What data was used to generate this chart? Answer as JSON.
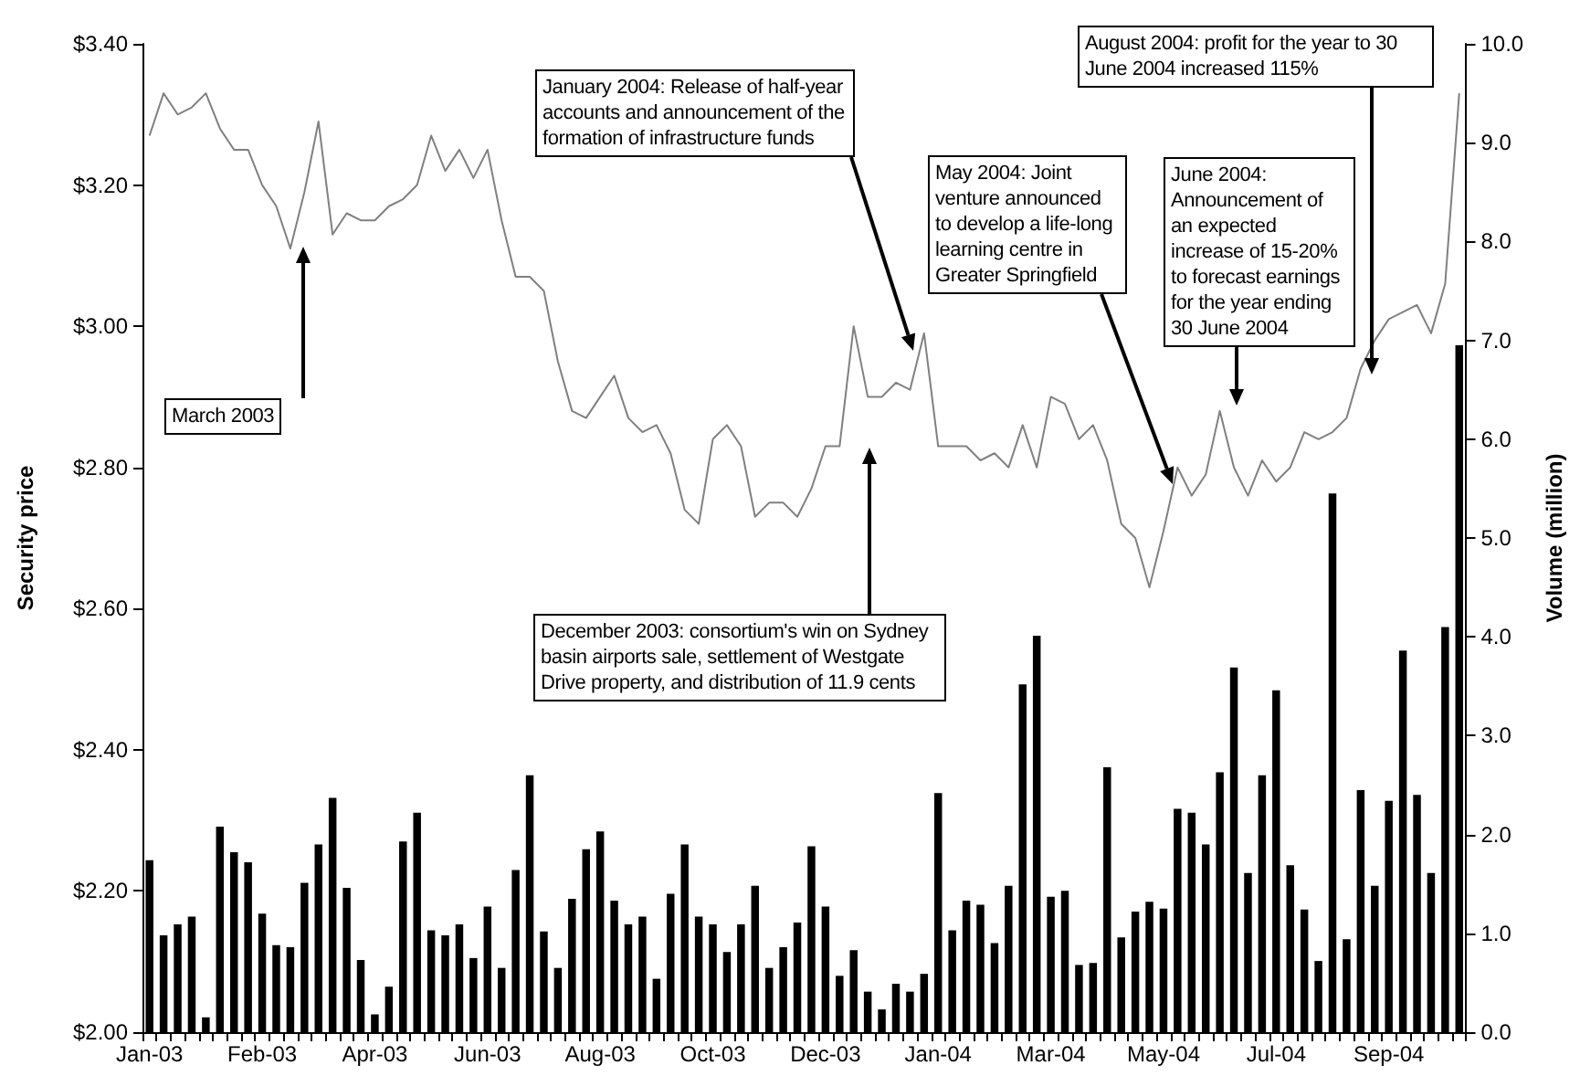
{
  "chart_data": {
    "type": "bar",
    "ylabel": "Security price",
    "y2label": "Volume (million)",
    "categories": [
      "Jan-03",
      null,
      null,
      null,
      null,
      null,
      null,
      null,
      "Feb-03",
      null,
      null,
      null,
      null,
      null,
      null,
      null,
      "Apr-03",
      null,
      null,
      null,
      null,
      null,
      null,
      null,
      "Jun-03",
      null,
      null,
      null,
      null,
      null,
      null,
      null,
      "Aug-03",
      null,
      null,
      null,
      null,
      null,
      null,
      null,
      "Oct-03",
      null,
      null,
      null,
      null,
      null,
      null,
      null,
      "Dec-03",
      null,
      null,
      null,
      null,
      null,
      null,
      null,
      "Jan-04",
      null,
      null,
      null,
      null,
      null,
      null,
      null,
      "Mar-04",
      null,
      null,
      null,
      null,
      null,
      null,
      null,
      "May-04",
      null,
      null,
      null,
      null,
      null,
      null,
      null,
      "Jul-04",
      null,
      null,
      null,
      null,
      null,
      null,
      null,
      "Sep-04",
      null,
      null,
      null,
      null,
      null
    ],
    "series": [
      {
        "axis": "y2",
        "color": "#000000",
        "values": [
          1.74,
          0.98,
          1.09,
          1.17,
          0.15,
          2.08,
          1.82,
          1.72,
          1.2,
          0.88,
          0.86,
          1.51,
          1.9,
          2.37,
          1.46,
          0.73,
          0.18,
          0.46,
          1.93,
          2.22,
          1.03,
          0.98,
          1.09,
          0.75,
          1.27,
          0.65,
          1.64,
          2.6,
          1.02,
          0.65,
          1.35,
          1.85,
          2.03,
          1.33,
          1.09,
          1.17,
          0.54,
          1.4,
          1.9,
          1.17,
          1.09,
          0.81,
          1.09,
          1.48,
          0.65,
          0.86,
          1.11,
          1.88,
          1.27,
          0.57,
          0.83,
          0.41,
          0.23,
          0.49,
          0.41,
          0.59,
          2.42,
          1.03,
          1.33,
          1.29,
          0.9,
          1.48,
          3.52,
          4.01,
          1.37,
          1.43,
          0.68,
          0.7,
          2.68,
          0.96,
          1.22,
          1.32,
          1.25,
          2.26,
          2.22,
          1.9,
          2.63,
          3.69,
          1.61,
          2.6,
          3.46,
          1.69,
          1.24,
          0.72,
          5.45,
          0.94,
          2.45,
          1.48,
          2.34,
          3.86,
          2.4,
          1.61,
          4.1,
          6.95
        ]
      },
      {
        "type": "line",
        "color": "#808080",
        "values": [
          3.27,
          3.33,
          3.3,
          3.31,
          3.33,
          3.28,
          3.25,
          3.25,
          3.2,
          3.17,
          3.11,
          3.19,
          3.29,
          3.13,
          3.16,
          3.15,
          3.15,
          3.17,
          3.18,
          3.2,
          3.27,
          3.22,
          3.25,
          3.21,
          3.25,
          3.15,
          3.07,
          3.07,
          3.05,
          2.95,
          2.88,
          2.87,
          2.9,
          2.93,
          2.87,
          2.85,
          2.86,
          2.82,
          2.74,
          2.72,
          2.84,
          2.86,
          2.83,
          2.73,
          2.75,
          2.75,
          2.73,
          2.77,
          2.83,
          2.83,
          3.0,
          2.9,
          2.9,
          2.92,
          2.91,
          2.99,
          2.83,
          2.83,
          2.83,
          2.81,
          2.82,
          2.8,
          2.86,
          2.8,
          2.9,
          2.89,
          2.84,
          2.86,
          2.81,
          2.72,
          2.7,
          2.63,
          2.71,
          2.8,
          2.76,
          2.79,
          2.88,
          2.8,
          2.76,
          2.81,
          2.78,
          2.8,
          2.85,
          2.84,
          2.85,
          2.87,
          2.94,
          2.98,
          3.01,
          3.02,
          3.03,
          2.99,
          3.06,
          3.33
        ]
      }
    ],
    "marker": "none",
    "ylim": [
      2,
      3.4
    ],
    "yticks": [
      {
        "value": 2,
        "label": "$2.00"
      },
      {
        "value": 2.2,
        "label": "$2.20"
      },
      {
        "value": 2.4,
        "label": "$2.40"
      },
      {
        "value": 2.6,
        "label": "$2.60"
      },
      {
        "value": 2.8,
        "label": "$2.80"
      },
      {
        "value": 3,
        "label": "$3.00"
      },
      {
        "value": 3.2,
        "label": "$3.20"
      },
      {
        "value": 3.4,
        "label": "$3.40"
      }
    ],
    "y2lim": [
      0,
      10
    ],
    "y2ticks": [
      {
        "value": 0,
        "label": "0.0"
      },
      {
        "value": 1,
        "label": "1.0"
      },
      {
        "value": 2,
        "label": "2.0"
      },
      {
        "value": 3,
        "label": "3.0"
      },
      {
        "value": 4,
        "label": "4.0"
      },
      {
        "value": 5,
        "label": "5.0"
      },
      {
        "value": 6,
        "label": "6.0"
      },
      {
        "value": 7,
        "label": "7.0"
      },
      {
        "value": 8,
        "label": "8.0"
      },
      {
        "value": 9,
        "label": "9.0"
      },
      {
        "value": 10,
        "label": "10.0"
      }
    ],
    "annotations": [
      "March 2003",
      "January 2004: Release of half-year accounts and announcement of the formation of infrastructure funds",
      "December 2003: consortium's win on Sydney basin airports sale, settlement of Westgate Drive property, and distribution of 11.9 cents",
      "May 2004: Joint venture announced to develop a life-long learning centre in Greater Springfield",
      "June 2004: Announcement of an expected increase of 15-20% to forecast earnings for the year ending 30 June 2004",
      "August 2004: profit for the year to 30 June 2004 increased 115%"
    ]
  }
}
